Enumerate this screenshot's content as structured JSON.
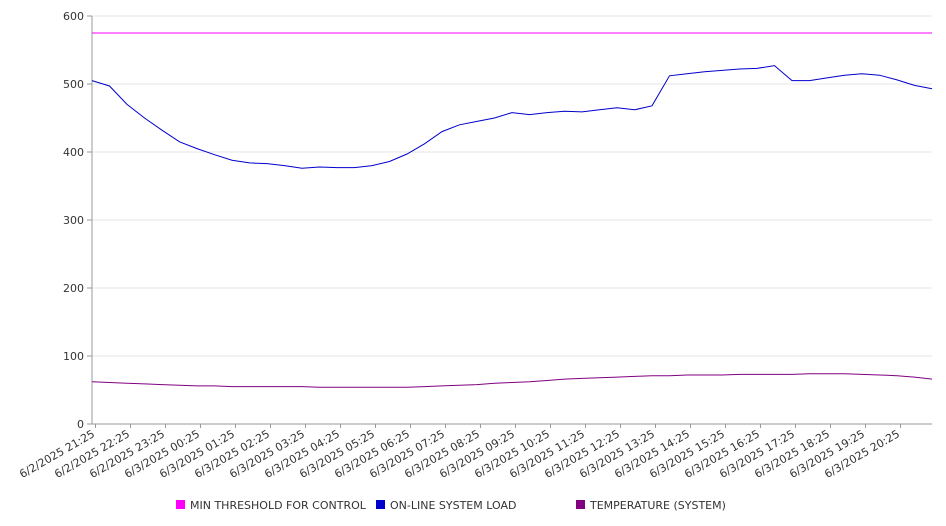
{
  "chart_data": {
    "type": "line",
    "title": "",
    "xlabel": "",
    "ylabel": "",
    "ylim": [
      0,
      600
    ],
    "yticks": [
      0,
      100,
      200,
      300,
      400,
      500,
      600
    ],
    "grid": true,
    "legend_position": "bottom",
    "x_tick_labels": [
      "6/2/2025 21:25",
      "6/2/2025 22:25",
      "6/2/2025 23:25",
      "6/3/2025 00:25",
      "6/3/2025 01:25",
      "6/3/2025 02:25",
      "6/3/2025 03:25",
      "6/3/2025 04:25",
      "6/3/2025 05:25",
      "6/3/2025 06:25",
      "6/3/2025 07:25",
      "6/3/2025 08:25",
      "6/3/2025 09:25",
      "6/3/2025 10:25",
      "6/3/2025 11:25",
      "6/3/2025 12:25",
      "6/3/2025 13:25",
      "6/3/2025 14:25",
      "6/3/2025 15:25",
      "6/3/2025 16:25",
      "6/3/2025 17:25",
      "6/3/2025 18:25",
      "6/3/2025 19:25",
      "6/3/2025 20:25"
    ],
    "x_hours": [
      0,
      0.5,
      1,
      1.5,
      2,
      2.5,
      3,
      3.5,
      4,
      4.5,
      5,
      5.5,
      6,
      6.5,
      7,
      7.5,
      8,
      8.5,
      9,
      9.5,
      10,
      10.5,
      11,
      11.5,
      12,
      12.5,
      13,
      13.5,
      14,
      14.5,
      15,
      15.5,
      16,
      16.5,
      17,
      17.5,
      18,
      18.5,
      19,
      19.5,
      20,
      20.5,
      21,
      21.5,
      22,
      22.5,
      23,
      23.5,
      24
    ],
    "series": [
      {
        "name": "MIN THRESHOLD FOR CONTROL",
        "color": "#ff00ff",
        "values": [
          575,
          575,
          575,
          575,
          575,
          575,
          575,
          575,
          575,
          575,
          575,
          575,
          575,
          575,
          575,
          575,
          575,
          575,
          575,
          575,
          575,
          575,
          575,
          575,
          575,
          575,
          575,
          575,
          575,
          575,
          575,
          575,
          575,
          575,
          575,
          575,
          575,
          575,
          575,
          575,
          575,
          575,
          575,
          575,
          575,
          575,
          575,
          575,
          575
        ]
      },
      {
        "name": "ON-LINE SYSTEM LOAD",
        "color": "#0000cc",
        "values": [
          505,
          497,
          470,
          450,
          432,
          415,
          405,
          396,
          388,
          384,
          383,
          380,
          376,
          378,
          377,
          377,
          380,
          386,
          397,
          412,
          430,
          440,
          445,
          450,
          458,
          455,
          458,
          460,
          459,
          462,
          465,
          462,
          468,
          512,
          515,
          518,
          520,
          522,
          523,
          527,
          505,
          505,
          509,
          513,
          515,
          513,
          506,
          498,
          493
        ]
      },
      {
        "name": "TEMPERATURE (SYSTEM)",
        "color": "#800080",
        "values": [
          62,
          61,
          60,
          59,
          58,
          57,
          56,
          56,
          55,
          55,
          55,
          55,
          55,
          54,
          54,
          54,
          54,
          54,
          54,
          55,
          56,
          57,
          58,
          60,
          61,
          62,
          64,
          66,
          67,
          68,
          69,
          70,
          71,
          71,
          72,
          72,
          72,
          73,
          73,
          73,
          73,
          74,
          74,
          74,
          73,
          72,
          71,
          69,
          66
        ]
      }
    ]
  }
}
